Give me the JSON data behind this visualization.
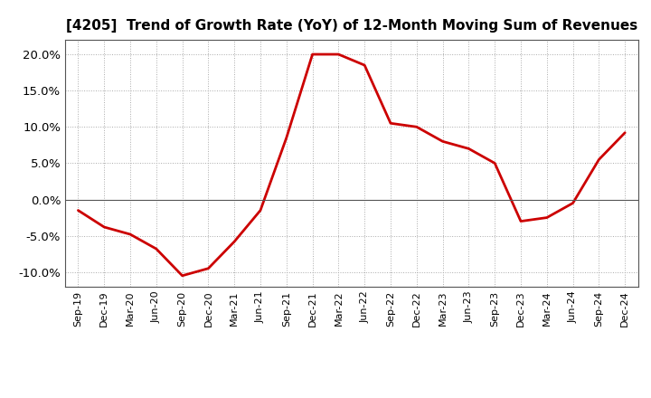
{
  "title": "[4205]  Trend of Growth Rate (YoY) of 12-Month Moving Sum of Revenues",
  "title_fontsize": 11,
  "line_color": "#CC0000",
  "line_width": 2.0,
  "background_color": "#ffffff",
  "plot_bg_color": "#ffffff",
  "ylim": [
    -0.12,
    0.22
  ],
  "yticks": [
    -0.1,
    -0.05,
    0.0,
    0.05,
    0.1,
    0.15,
    0.2
  ],
  "ytick_labels": [
    "-10.0%",
    "-5.0%",
    "0.0%",
    "5.0%",
    "10.0%",
    "15.0%",
    "20.0%"
  ],
  "x_labels": [
    "Sep-19",
    "Dec-19",
    "Mar-20",
    "Jun-20",
    "Sep-20",
    "Dec-20",
    "Mar-21",
    "Jun-21",
    "Sep-21",
    "Dec-21",
    "Mar-22",
    "Jun-22",
    "Sep-22",
    "Dec-22",
    "Mar-23",
    "Jun-23",
    "Sep-23",
    "Dec-23",
    "Mar-24",
    "Jun-24",
    "Sep-24",
    "Dec-24"
  ],
  "values": [
    -0.015,
    -0.038,
    -0.048,
    -0.068,
    -0.105,
    -0.095,
    -0.058,
    -0.015,
    0.085,
    0.2,
    0.2,
    0.185,
    0.105,
    0.1,
    0.08,
    0.07,
    0.05,
    -0.03,
    -0.025,
    -0.005,
    0.055,
    0.092
  ],
  "spine_color": "#555555",
  "grid_color": "#aaaaaa",
  "tick_label_fontsize": 9.5,
  "xtick_fontsize": 8.0
}
